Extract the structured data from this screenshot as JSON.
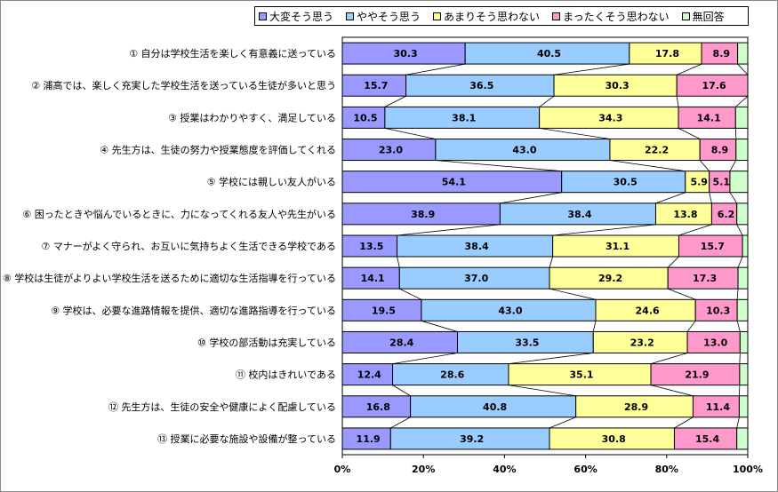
{
  "chart_data": {
    "type": "bar",
    "orientation": "horizontal",
    "stacked": true,
    "percent_stacked": true,
    "categories": [
      "① 自分は学校生活を楽しく有意義に送っている",
      "② 浦高では、楽しく充実した学校生活を送っている生徒が多いと思う",
      "③ 授業はわかりやすく、満足している",
      "④ 先生方は、生徒の努力や授業態度を評価してくれる",
      "⑤ 学校には親しい友人がいる",
      "⑥ 困ったときや悩んでいるときに、力になってくれる友人や先生がいる",
      "⑦ マナーがよく守られ、お互いに気持ちよく生活できる学校である",
      "⑧ 学校は生徒がよりよい学校生活を送るために適切な生活指導を行っている",
      "⑨ 学校は、必要な進路情報を提供、適切な進路指導を行っている",
      "⑩ 学校の部活動は充実している",
      "⑪ 校内はきれいである",
      "⑫ 先生方は、生徒の安全や健康によく配慮している",
      "⑬ 授業に必要な施設や設備が整っている"
    ],
    "series": [
      {
        "name": "大変そう思う",
        "color": "#9999FF",
        "values": [
          30.3,
          15.7,
          10.5,
          23.0,
          54.1,
          38.9,
          13.5,
          14.1,
          19.5,
          28.4,
          12.4,
          16.8,
          11.9
        ]
      },
      {
        "name": "ややそう思う",
        "color": "#99CCFF",
        "values": [
          40.5,
          36.5,
          38.1,
          43.0,
          30.5,
          38.4,
          38.4,
          37.0,
          43.0,
          33.5,
          28.6,
          40.8,
          39.2
        ]
      },
      {
        "name": "あまりそう思わない",
        "color": "#FFFF99",
        "values": [
          17.8,
          30.3,
          34.3,
          22.2,
          5.9,
          13.8,
          31.1,
          29.2,
          24.6,
          23.2,
          35.1,
          28.9,
          30.8
        ]
      },
      {
        "name": "まったくそう思わない",
        "color": "#FF99CC",
        "values": [
          8.9,
          17.6,
          14.1,
          8.9,
          5.1,
          6.2,
          15.7,
          17.3,
          10.3,
          13.0,
          21.9,
          11.4,
          15.4
        ]
      },
      {
        "name": "無回答",
        "color": "#CCFFCC",
        "values": [
          2.5,
          0.0,
          3.0,
          2.9,
          4.4,
          2.7,
          1.3,
          2.4,
          2.6,
          1.9,
          2.0,
          2.1,
          2.7
        ]
      }
    ],
    "xlim": [
      0,
      100
    ],
    "x_ticks": [
      "0%",
      "20%",
      "40%",
      "60%",
      "80%",
      "100%"
    ],
    "data_labels_shown_for_series": [
      0,
      1,
      2,
      3
    ],
    "series_lines": true,
    "legend_position": "top"
  }
}
